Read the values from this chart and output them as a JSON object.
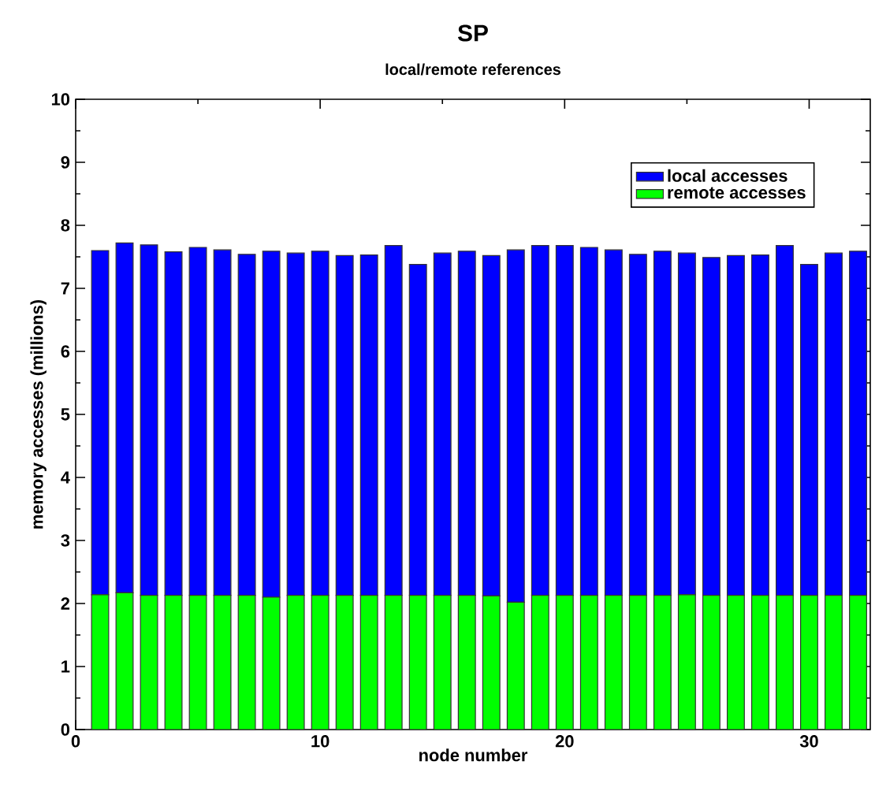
{
  "chart_data": {
    "type": "bar",
    "title": "SP",
    "subtitle": "local/remote references",
    "xlabel": "node number",
    "ylabel": "memory accesses (millions)",
    "x": [
      1,
      2,
      3,
      4,
      5,
      6,
      7,
      8,
      9,
      10,
      11,
      12,
      13,
      14,
      15,
      16,
      17,
      18,
      19,
      20,
      21,
      22,
      23,
      24,
      25,
      26,
      27,
      28,
      29,
      30,
      31,
      32
    ],
    "stacked": true,
    "legend": "top right",
    "xlim": [
      0,
      32.5
    ],
    "xticks": [
      0,
      10,
      20,
      30
    ],
    "ylim": [
      0,
      10
    ],
    "yticks": [
      0,
      1,
      2,
      3,
      4,
      5,
      6,
      7,
      8,
      9,
      10
    ],
    "series": [
      {
        "name": "remote accesses",
        "color": "#00ff00",
        "values": [
          2.14,
          2.17,
          2.13,
          2.13,
          2.13,
          2.13,
          2.13,
          2.1,
          2.13,
          2.13,
          2.13,
          2.13,
          2.13,
          2.13,
          2.13,
          2.13,
          2.12,
          2.02,
          2.13,
          2.13,
          2.13,
          2.13,
          2.13,
          2.13,
          2.14,
          2.13,
          2.13,
          2.13,
          2.13,
          2.13,
          2.13,
          2.13
        ]
      },
      {
        "name": "local accesses",
        "color": "#0000ff",
        "values": [
          5.46,
          5.55,
          5.56,
          5.45,
          5.52,
          5.48,
          5.41,
          5.49,
          5.43,
          5.46,
          5.39,
          5.4,
          5.55,
          5.25,
          5.43,
          5.46,
          5.4,
          5.59,
          5.55,
          5.55,
          5.52,
          5.48,
          5.41,
          5.46,
          5.42,
          5.36,
          5.39,
          5.4,
          5.55,
          5.25,
          5.43,
          5.46
        ]
      }
    ]
  }
}
